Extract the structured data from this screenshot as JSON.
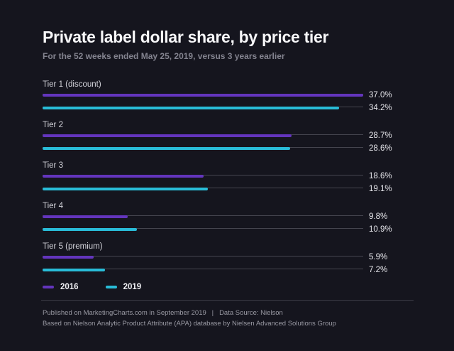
{
  "header": {
    "title": "Private label dollar share, by price tier",
    "subtitle": "For the 52 weeks ended May 25, 2019, versus 3 years earlier"
  },
  "chart_data": {
    "type": "bar",
    "orientation": "horizontal",
    "title": "Private label dollar share, by price tier",
    "subtitle": "For the 52 weeks ended May 25, 2019, versus 3 years earlier",
    "categories": [
      "Tier 1 (discount)",
      "Tier 2",
      "Tier 3",
      "Tier 4",
      "Tier 5 (premium)"
    ],
    "series": [
      {
        "name": "2016",
        "color": "#6335bd",
        "values": [
          37.0,
          28.7,
          18.6,
          9.8,
          5.9
        ]
      },
      {
        "name": "2019",
        "color": "#29bcd8",
        "values": [
          34.2,
          28.6,
          19.1,
          10.9,
          7.2
        ]
      }
    ],
    "value_suffix": "%",
    "xlim": [
      0,
      37
    ],
    "grid": false,
    "legend_position": "bottom-left"
  },
  "colors": {
    "background": "#15151e",
    "track": "#45454f",
    "bar_2016": "#6335bd",
    "bar_2019": "#29bcd8"
  },
  "footer": {
    "line1": "Published on MarketingCharts.com in September 2019   |   Data Source: Nielson",
    "line2": "Based on Nielson Analytic Product Attribute (APA) database by Nielsen Advanced Solutions Group"
  }
}
